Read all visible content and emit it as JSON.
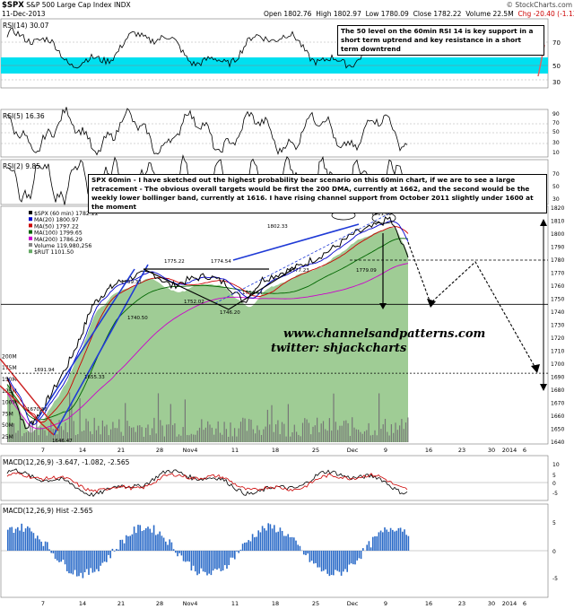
{
  "header": {
    "symbol": "$SPX",
    "name": "S&P 500 Large Cap Index",
    "exchange": "INDX",
    "date": "11-Dec-2013",
    "open": "Open 1802.76",
    "high": "High 1802.97",
    "low": "Low 1780.09",
    "close": "Close 1782.22",
    "volume": "Volume 22.5M",
    "chg": "Chg -20.40 (-1.13%)",
    "credit": "© StockCharts.com"
  },
  "annotations": {
    "rsi_note": "The 50 level on the 60min RSI 14 is key support in a short term uptrend and key resistance in a short term downtrend",
    "main_note": "SPX 60min - I have sketched out the highest probability bear scenario on this 60min chart, if we are to see a large retracement - The obvious overall targets would be first the 200 DMA, currently at 1662, and the second would be the weekly lower bollinger band, currently at 1616. I have rising channel support from October 2011 slightly under 1600 at the moment",
    "watermark_1": "www.channelsandpatterns.com",
    "watermark_2": "twitter: shjackcharts"
  },
  "panels": {
    "rsi14": {
      "label": "RSI(14) 30.07"
    },
    "rsi5": {
      "label": "RSI(5) 16.36"
    },
    "rsi2": {
      "label": "RSI(2) 9.85"
    },
    "macd": {
      "label": "MACD(12,26,9) -3.647, -1.082, -2.565"
    },
    "hist": {
      "label": "MACD(12,26,9) Hist -2.565"
    }
  },
  "legend": [
    {
      "label": "$SPX (60 min) 1782.22",
      "color": "#000000"
    },
    {
      "label": "MA(20) 1800.97",
      "color": "#0000cc"
    },
    {
      "label": "MA(50) 1797.22",
      "color": "#cc0000"
    },
    {
      "label": "MA(100) 1799.65",
      "color": "#006600"
    },
    {
      "label": "MA(200) 1786.29",
      "color": "#cc00cc"
    },
    {
      "label": "Volume 119,980,256",
      "color": "#888888"
    },
    {
      "label": "$RUT 1101.50",
      "color": "#66aa66"
    }
  ],
  "price_labels": [
    "1813.55",
    "1811.62",
    "1802.33",
    "1775.22",
    "1774.54",
    "1759.33",
    "1752.02",
    "1746.20",
    "1740.50",
    "1764.64",
    "1777.23",
    "1779.09",
    "1691.94",
    "1670.36",
    "1646.47",
    "1655.33"
  ],
  "x_ticks": [
    "7",
    "14",
    "21",
    "28",
    "Nov4",
    "11",
    "18",
    "25",
    "Dec",
    "9",
    "16",
    "23",
    "30",
    "2014",
    "6"
  ],
  "colors": {
    "rsi_band": "#00e0f0",
    "rut_fill": "#9fcc95",
    "up_arrow": "#2233dd",
    "down_arrow": "#dd2222"
  },
  "chart_data": {
    "type": "line",
    "title": "$SPX 60 min",
    "y_axis_right": [
      1640,
      1650,
      1660,
      1670,
      1680,
      1690,
      1700,
      1710,
      1720,
      1730,
      1740,
      1750,
      1760,
      1770,
      1780,
      1790,
      1800,
      1810,
      1820
    ],
    "volume_axis_left": [
      "25M",
      "50M",
      "75M",
      "100M",
      "125M",
      "150M",
      "175M",
      "200M"
    ],
    "rsi_axis": [
      30,
      50,
      70
    ],
    "rsi5_axis": [
      10,
      20,
      30,
      40,
      50,
      60,
      70,
      80,
      90
    ],
    "macd_axis": [
      10,
      5,
      0,
      -5
    ],
    "hist_axis": [
      5,
      0,
      -5
    ],
    "horizontal_levels": [
      1780,
      1746,
      1693
    ],
    "series": [
      {
        "name": "$SPX",
        "x": [
          7,
          10,
          12,
          14,
          17,
          19,
          21,
          23,
          25,
          28,
          31,
          34,
          37,
          40,
          43,
          46,
          49,
          52,
          55,
          58,
          61,
          64,
          67,
          70,
          73
        ],
        "values": [
          1690,
          1650,
          1660,
          1675,
          1700,
          1720,
          1745,
          1755,
          1762,
          1768,
          1770,
          1760,
          1765,
          1768,
          1762,
          1748,
          1765,
          1770,
          1775,
          1782,
          1790,
          1800,
          1805,
          1812,
          1782
        ]
      }
    ]
  }
}
